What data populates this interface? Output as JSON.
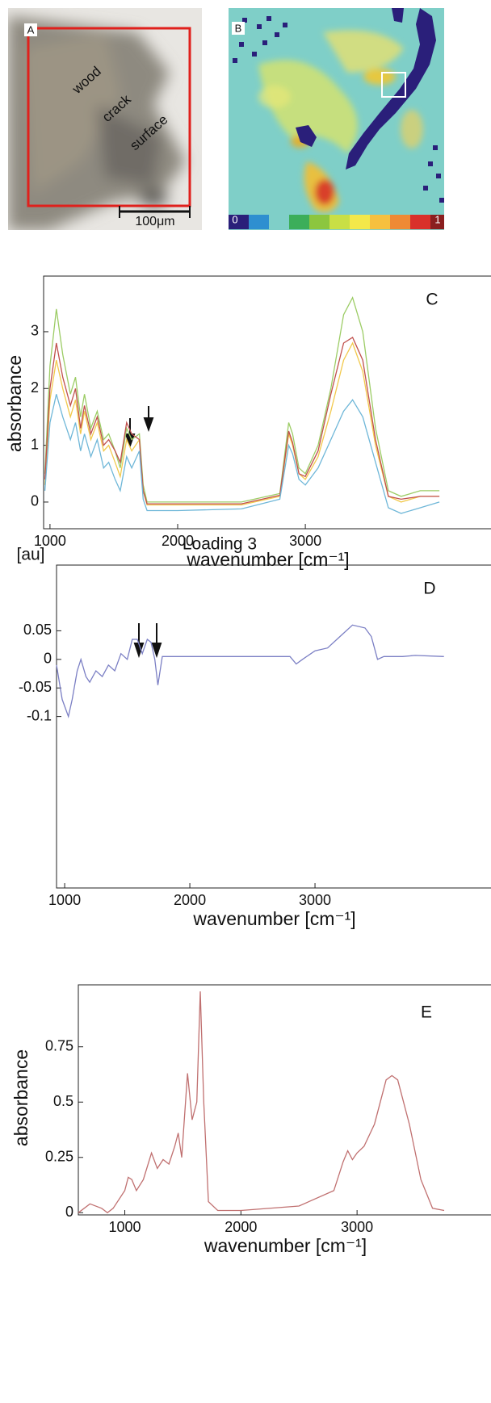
{
  "panels": {
    "a": {
      "label": "A",
      "annotations": [
        "wood",
        "crack",
        "surface"
      ],
      "scale_bar": "100μm"
    },
    "b": {
      "label": "B",
      "colorbar_ticks": [
        "0",
        "1"
      ]
    }
  },
  "chart_data": [
    {
      "type": "line",
      "annotation": "C",
      "xlabel": "wavenumber [cm⁻¹]",
      "ylabel": "absorbance",
      "x": [
        960,
        1000,
        1050,
        1100,
        1160,
        1200,
        1240,
        1270,
        1320,
        1370,
        1420,
        1460,
        1510,
        1550,
        1600,
        1640,
        1700,
        1730,
        1760,
        2000,
        2500,
        2800,
        2870,
        2900,
        2950,
        3000,
        3100,
        3200,
        3300,
        3370,
        3450,
        3550,
        3650,
        3750,
        3900,
        4050
      ],
      "series": [
        {
          "color": "#9ccc65",
          "values": [
            0.5,
            2.4,
            3.4,
            2.6,
            1.9,
            2.2,
            1.5,
            1.9,
            1.3,
            1.6,
            1.1,
            1.2,
            0.9,
            0.6,
            1.3,
            1.1,
            1.2,
            0.3,
            0.0,
            0.0,
            0.0,
            0.15,
            1.4,
            1.2,
            0.6,
            0.5,
            1.0,
            2.0,
            3.3,
            3.6,
            3.0,
            1.3,
            0.2,
            0.1,
            0.2,
            0.2
          ]
        },
        {
          "color": "#f2c94c",
          "values": [
            0.3,
            1.8,
            2.5,
            2.0,
            1.5,
            1.8,
            1.2,
            1.6,
            1.1,
            1.4,
            0.9,
            1.0,
            0.7,
            0.45,
            1.1,
            0.9,
            1.1,
            0.2,
            -0.05,
            -0.05,
            -0.05,
            0.1,
            1.2,
            1.0,
            0.5,
            0.4,
            0.8,
            1.6,
            2.5,
            2.8,
            2.3,
            1.0,
            0.1,
            0.0,
            0.1,
            0.1
          ]
        },
        {
          "color": "#c0504d",
          "values": [
            0.4,
            2.0,
            2.8,
            2.2,
            1.7,
            2.0,
            1.3,
            1.7,
            1.2,
            1.5,
            1.0,
            1.1,
            0.9,
            0.7,
            1.4,
            1.2,
            1.1,
            0.2,
            -0.03,
            -0.03,
            -0.03,
            0.12,
            1.25,
            1.05,
            0.5,
            0.45,
            0.9,
            1.9,
            2.8,
            2.9,
            2.5,
            1.1,
            0.1,
            0.05,
            0.1,
            0.1
          ]
        },
        {
          "color": "#6fb7d8",
          "values": [
            0.2,
            1.4,
            1.9,
            1.5,
            1.1,
            1.4,
            0.9,
            1.2,
            0.8,
            1.1,
            0.6,
            0.7,
            0.4,
            0.2,
            0.8,
            0.6,
            0.9,
            0.05,
            -0.15,
            -0.15,
            -0.12,
            0.05,
            1.0,
            0.85,
            0.4,
            0.3,
            0.6,
            1.1,
            1.6,
            1.8,
            1.5,
            0.7,
            -0.1,
            -0.2,
            -0.1,
            0.0
          ]
        }
      ],
      "xlim": [
        950,
        4100
      ],
      "ylim": [
        -0.47,
        3.98
      ],
      "xticks": [
        1000,
        2000,
        3000
      ],
      "yticks": [
        0,
        1,
        2,
        3
      ]
    },
    {
      "type": "line",
      "title": "Loading 3",
      "annotation": "D",
      "xlabel": "wavenumber [cm⁻¹]",
      "ylabel": "[au]",
      "x": [
        935,
        980,
        1030,
        1060,
        1100,
        1130,
        1170,
        1200,
        1250,
        1300,
        1350,
        1400,
        1450,
        1500,
        1540,
        1580,
        1620,
        1660,
        1690,
        1720,
        1745,
        1780,
        2000,
        2500,
        2800,
        2850,
        2900,
        3000,
        3100,
        3200,
        3300,
        3400,
        3450,
        3500,
        3550,
        3700,
        3800,
        4030
      ],
      "series": [
        {
          "color": "#7b7fc4",
          "values": [
            -0.01,
            -0.07,
            -0.1,
            -0.07,
            -0.02,
            0.0,
            -0.03,
            -0.04,
            -0.02,
            -0.03,
            -0.01,
            -0.02,
            0.01,
            0.0,
            0.035,
            0.035,
            0.01,
            0.035,
            0.03,
            0.0,
            -0.045,
            0.005,
            0.005,
            0.005,
            0.005,
            -0.008,
            0.0,
            0.015,
            0.02,
            0.04,
            0.06,
            0.055,
            0.04,
            0.0,
            0.005,
            0.005,
            0.007,
            0.005
          ]
        }
      ],
      "xlim": [
        935,
        4032
      ],
      "ylim": [
        -0.4,
        0.165
      ],
      "xticks": [
        1000,
        2000,
        3000
      ],
      "yticks": [
        0.05,
        0,
        -0.05,
        -0.1
      ]
    },
    {
      "type": "line",
      "annotation": "E",
      "xlabel": "wavenumber [cm⁻¹]",
      "ylabel": "absorbance",
      "x": [
        600,
        700,
        800,
        850,
        900,
        1000,
        1030,
        1060,
        1100,
        1160,
        1230,
        1280,
        1330,
        1380,
        1430,
        1460,
        1490,
        1540,
        1580,
        1620,
        1650,
        1680,
        1720,
        1800,
        2000,
        2500,
        2800,
        2880,
        2920,
        2960,
        3000,
        3060,
        3150,
        3250,
        3300,
        3350,
        3450,
        3550,
        3650,
        3750
      ],
      "series": [
        {
          "color": "#c07070",
          "values": [
            0.0,
            0.04,
            0.02,
            0.0,
            0.02,
            0.1,
            0.16,
            0.15,
            0.1,
            0.15,
            0.27,
            0.2,
            0.24,
            0.22,
            0.3,
            0.36,
            0.25,
            0.63,
            0.42,
            0.5,
            1.0,
            0.5,
            0.05,
            0.01,
            0.01,
            0.03,
            0.1,
            0.23,
            0.28,
            0.24,
            0.27,
            0.3,
            0.4,
            0.6,
            0.62,
            0.6,
            0.4,
            0.15,
            0.02,
            0.01
          ]
        }
      ],
      "xlim": [
        600,
        3750
      ],
      "ylim": [
        -0.01,
        1.03
      ],
      "xticks": [
        1000,
        2000,
        3000
      ],
      "yticks": [
        0,
        0.25,
        0.5,
        0.75
      ]
    }
  ]
}
